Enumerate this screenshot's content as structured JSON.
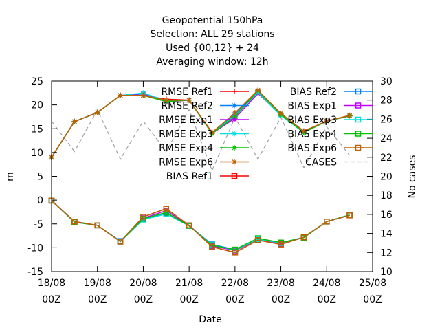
{
  "chart_data": {
    "type": "line",
    "title_lines": [
      "Geopotential 150hPa",
      "Selection: ALL      29 stations",
      "Used {00,12} + 24",
      "Averaging window: 12h"
    ],
    "xlabel": "Date",
    "ylabel": "m",
    "y2label": "No cases",
    "x_ticks": [
      {
        "day": "18/08",
        "hour": "00Z"
      },
      {
        "day": "19/08",
        "hour": "00Z"
      },
      {
        "day": "20/08",
        "hour": "00Z"
      },
      {
        "day": "21/08",
        "hour": "00Z"
      },
      {
        "day": "22/08",
        "hour": "00Z"
      },
      {
        "day": "23/08",
        "hour": "00Z"
      },
      {
        "day": "24/08",
        "hour": "00Z"
      },
      {
        "day": "25/08",
        "hour": "00Z"
      }
    ],
    "x_range": [
      0,
      7
    ],
    "ylim": [
      -15,
      25
    ],
    "y_ticks": [
      -15,
      -10,
      -5,
      0,
      5,
      10,
      15,
      20,
      25
    ],
    "y2lim": [
      10,
      30
    ],
    "y2_ticks": [
      10,
      12,
      14,
      16,
      18,
      20,
      22,
      24,
      26,
      28,
      30
    ],
    "x": [
      0,
      0.5,
      1,
      1.5,
      2,
      2.5,
      3,
      3.5,
      4,
      4.5,
      5,
      5.5,
      6,
      6.5
    ],
    "series": [
      {
        "name": "RMSE Ref1",
        "color": "#ff0000",
        "marker": "plus",
        "values": [
          9.0,
          16.5,
          18.4,
          22.0,
          22.0,
          21.2,
          21.0,
          14.2,
          18.3,
          23.0,
          18.2,
          14.5,
          16.6,
          17.8
        ]
      },
      {
        "name": "RMSE Ref2",
        "color": "#0080ff",
        "marker": "star",
        "values": [
          9.0,
          16.5,
          18.4,
          22.0,
          22.3,
          20.8,
          21.0,
          14.0,
          18.0,
          22.8,
          18.0,
          14.3,
          16.6,
          17.7
        ]
      },
      {
        "name": "RMSE Exp1",
        "color": "#c000ff",
        "marker": "star",
        "values": [
          9.0,
          16.5,
          18.4,
          22.0,
          22.4,
          20.6,
          21.0,
          14.0,
          17.2,
          22.4,
          18.0,
          14.3,
          16.6,
          17.7
        ]
      },
      {
        "name": "RMSE Exp3",
        "color": "#00e0e0",
        "marker": "star",
        "values": [
          9.0,
          16.5,
          18.4,
          22.0,
          22.5,
          20.9,
          21.0,
          14.0,
          17.8,
          22.6,
          17.8,
          14.2,
          16.6,
          17.7
        ]
      },
      {
        "name": "RMSE Exp4",
        "color": "#00c000",
        "marker": "star",
        "values": [
          9.0,
          16.5,
          18.4,
          22.0,
          22.0,
          20.7,
          21.0,
          14.0,
          17.5,
          23.0,
          18.0,
          14.2,
          16.6,
          17.7
        ]
      },
      {
        "name": "RMSE Exp6",
        "color": "#c06000",
        "marker": "star",
        "values": [
          9.0,
          16.5,
          18.4,
          22.0,
          22.0,
          21.0,
          21.0,
          14.2,
          18.3,
          23.1,
          18.2,
          14.5,
          16.6,
          17.8
        ]
      },
      {
        "name": "BIAS Ref1",
        "color": "#ff0000",
        "marker": "square",
        "values": [
          -0.1,
          -4.5,
          -5.3,
          -8.7,
          -3.5,
          -1.8,
          -5.3,
          -9.8,
          -11.0,
          -8.4,
          -9.3,
          -7.8,
          -4.5,
          -3.2
        ]
      },
      {
        "name": "BIAS Ref2",
        "color": "#0080ff",
        "marker": "square",
        "values": [
          -0.1,
          -4.5,
          -5.3,
          -8.6,
          -4.0,
          -2.7,
          -5.4,
          -9.3,
          -10.4,
          -8.1,
          -9.0,
          -7.8,
          -4.5,
          -3.1
        ]
      },
      {
        "name": "BIAS Exp1",
        "color": "#c000ff",
        "marker": "square",
        "values": [
          -0.1,
          -4.6,
          -5.3,
          -8.7,
          -3.8,
          -2.2,
          -5.3,
          -9.6,
          -10.6,
          -8.3,
          -9.1,
          -7.8,
          -4.5,
          -3.2
        ]
      },
      {
        "name": "BIAS Exp3",
        "color": "#00e0e0",
        "marker": "square",
        "values": [
          -0.1,
          -4.6,
          -5.3,
          -8.7,
          -4.1,
          -2.9,
          -5.4,
          -9.4,
          -10.5,
          -8.2,
          -9.0,
          -7.8,
          -4.5,
          -3.1
        ]
      },
      {
        "name": "BIAS Exp4",
        "color": "#00c000",
        "marker": "square",
        "values": [
          -0.1,
          -4.6,
          -5.3,
          -8.7,
          -3.9,
          -2.6,
          -5.4,
          -9.5,
          -10.4,
          -8.0,
          -8.9,
          -7.9,
          -4.5,
          -3.1
        ]
      },
      {
        "name": "BIAS Exp6",
        "color": "#c06000",
        "marker": "square",
        "values": [
          -0.1,
          -4.5,
          -5.3,
          -8.7,
          -3.5,
          -1.8,
          -5.3,
          -9.8,
          -11.0,
          -8.4,
          -9.3,
          -7.8,
          -4.5,
          -3.2
        ]
      },
      {
        "name": "CASES",
        "color": "#a0a0a0",
        "marker": "none",
        "axis": "y2",
        "dashed": true,
        "values": [
          25.8,
          22.6,
          27.0,
          21.8,
          25.8,
          22.6,
          27.0,
          20.6,
          26.2,
          21.8,
          26.2,
          20.9,
          25.2,
          22.2
        ]
      }
    ],
    "legend_placement": "top",
    "grid": false
  }
}
